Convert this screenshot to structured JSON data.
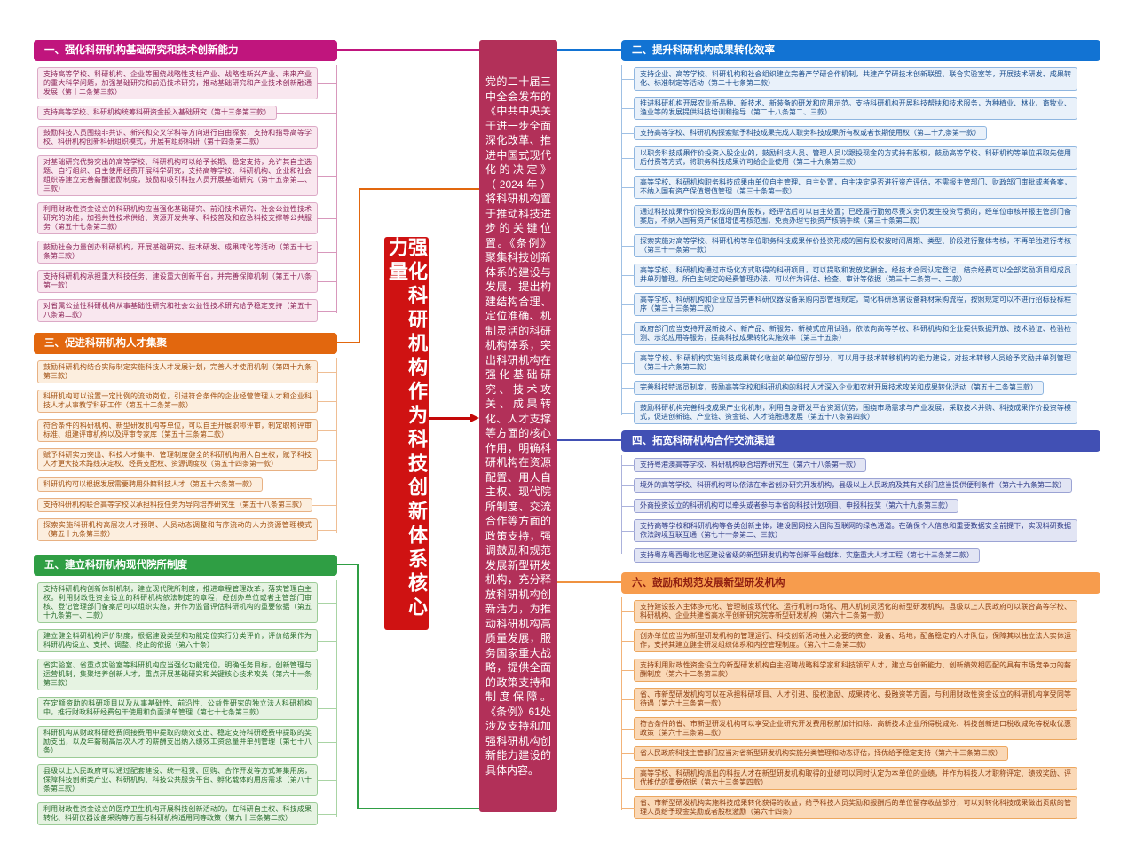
{
  "root": {
    "title": "强化科研机构作为科技创新体系核心力量",
    "title_bg": "#CF1212",
    "summary": "党的二十届三中全会发布的《中共中央关于进一步全面深化改革、推进中国式现代化的决定》（2024年）将科研机构置于推动科技进步的关键位置。《条例》聚集科技创新体系的建设与发展，提出构建结构合理、定位准确、机制灵活的科研机构体系，突出科研机构在强化基础研究、技术攻关、成果转化、人才支撑等方面的核心作用，明确科研机构在资源配置、用人自主权、现代院所制度、交流合作等方面的政策支持，强调鼓励和规范发展新型研发机构，充分释放科研机构创新活力，为推动科研机构高质量发展，服务国家重大战略，提供全面的政策支持和制度保障。《条例》61处涉及支持和加强科研机构创新能力建设的具体内容。",
    "summary_bg": "#B23059",
    "arrow_color": "#C40808"
  },
  "branches": [
    {
      "id": "b1",
      "side": "left",
      "label": "一、强化科研机构基础研究和技术创新能力",
      "colors": {
        "header_bg": "#C0157D",
        "header_text": "#FFFFFF",
        "item_bg": "#F9E7EF",
        "item_border": "#DCA9C6",
        "item_text": "#8C2457",
        "line": "#D898BC",
        "connector": "#C0157D"
      },
      "items": [
        "支持高等学校、科研机构、企业等围绕战略性支柱产业、战略性新兴产业、未来产业的重大科学问题，加强基础研究和前沿技术研究，推动基础研究和产业技术创新融通发展（第十二条第三款）",
        "支持高等学校、科研机构统筹科研资金投入基础研究（第十三条第三款）",
        "鼓励科技人员围绕非共识、新兴和交叉学科等方向进行自由探索，支持和指导高等学校、科研机构创新科研组织模式，开展有组织科研（第十四条第二款）",
        "对基础研究优势突出的高等学校、科研机构可以给予长期、稳定支持，允许其自主选题、自行组织、自主使用经费开展科学研究，支持高等学校、科研机构、企业和社会组织等建立完善薪酬激励制度，鼓励和吸引科技人员开展基础研究（第十五条第二、三款）",
        "利用财政性资金设立的科研机构应当强化基础研究、前沿技术研究、社会公益性技术研究的功能，加强共性技术供给、资源开发共享、科技普及和应急科技支撑等公共服务（第五十七条第二款）",
        "鼓励社会力量创办科研机构，开展基础研究、技术研发、成果转化等活动（第五十七条第三款）",
        "支持科研机构承担重大科技任务、建设重大创新平台，并完善保障机制（第五十八条第一款）",
        "对省属公益性科研机构从事基础性研究和社会公益性技术研究给予稳定支持（第五十八条第二款）"
      ]
    },
    {
      "id": "b2",
      "side": "right",
      "label": "二、提升科研机构成果转化效率",
      "colors": {
        "header_bg": "#1273D3",
        "header_text": "#FFFFFF",
        "item_bg": "#E9F1FA",
        "item_border": "#8FB6E0",
        "item_text": "#1B4E8C",
        "line": "#9FC0E4",
        "connector": "#1273D3"
      },
      "items": [
        "支持企业、高等学校、科研机构和社会组织建立完善产学研合作机制，共建产学研技术创新联盟、联合实验室等，开展技术研发、成果转化、标准制定等活动（第二十七条第二款）",
        "推进科研机构开展农业新品种、新技术、新装备的研发和应用示范。支持科研机构开展科技帮扶和技术服务，为种植业、林业、畜牧业、渔业等的发展提供科技培训和指导（第二十八条第二、三款）",
        "支持高等学校、科研机构探索赋予科技成果完成人职务科技成果所有权或者长期使用权（第二十九条第一款）",
        "以职务科技成果作价投资入股企业的，鼓励科技人员、管理人员以跟投现金的方式持有股权，鼓励高等学校、科研机构等单位采取先使用后付费等方式，将职务科技成果许可给企业使用（第二十九条第三款）",
        "高等学校、科研机构职务科技成果由单位自主管理、自主处置，自主决定是否进行资产评估，不需报主管部门、财政部门审批或者备案，不纳入国有资产保值增值管理（第三十条第一款）",
        "通过科技成果作价投资形成的国有股权，经评估后可以自主处置；已经履行勤勉尽责义务仍发生投资亏损的，经单位审核并报主管部门备案后，不纳入国有资产保值增值考核范围，免责办理亏损资产核销手续（第三十条第二款）",
        "探索实施对高等学校、科研机构等单位职务科技成果作价投资形成的国有股权按时间周期、类型、阶段进行整体考核，不再单独进行考核（第三十一条第一款）",
        "高等学校、科研机构通过市场化方式取得的科研项目，可以提取和发放奖酬金。经技术合同认定登记，结余经费可以全部奖励项目组成员并单列管理。所自主制定的经费管理办法，可以作为评估、检查、审计等依据（第三十二条第一、二款）",
        "高等学校、科研机构和企业应当完善科研仪器设备采购内部管理规定，简化科研急需设备耗材采购流程，按照规定可以不进行招标投标程序（第三十三条第二款）",
        "政府部门应当支持开展新技术、新产品、新服务、新模式应用试验，依法向高等学校、科研机构和企业提供数据开放、技术验证、检验检测、示范应用等服务，提高科技成果转化实施效率（第三十五条）",
        "高等学校、科研机构实施科技成果转化收益的单位留存部分，可以用于技术转移机构的能力建设，对技术转移人员给予奖励并单列管理（第三十六条第二款）",
        "完善科技特派员制度，鼓励高等学校和科研机构的科技人才深入企业和农村开展技术攻关和成果转化活动（第五十二条第三款）",
        "鼓励科研机构完善科技成果产业化机制，利用自身研发平台资源优势，围绕市场需求与产业发展，采取技术并购、科技成果作价投资等模式，促进创新链、产业链、资金链、人才链融通发展（第五十八条第四款）"
      ]
    },
    {
      "id": "b3",
      "side": "left",
      "label": "三、促进科研机构人才集聚",
      "colors": {
        "header_bg": "#E2670E",
        "header_text": "#FFFFFF",
        "item_bg": "#FCEEDE",
        "item_border": "#E8B183",
        "item_text": "#A04F10",
        "line": "#EFBE94",
        "connector": "#E2670E"
      },
      "items": [
        "鼓励科研机构结合实际制定实施科技人才发展计划，完善人才使用机制（第四十九条第三款）",
        "科研机构可以设置一定比例的流动岗位，引进符合条件的企业经营管理人才和企业科技人才从事教学科研工作（第五十二条第一款）",
        "符合条件的科研机构、新型研发机构等单位，可以自主开展职称评审，制定职称评审标准、组建评审机构以及评审专家库（第五十三条第二款）",
        "赋予科研实力突出、科技人才集中、管理制度健全的科研机构用人自主权，赋予科技人才更大技术路线决定权、经费支配权、资源调度权（第五十四条第一款）",
        "科研机构可以根据发展需要聘用外籍科技人才（第五十六条第一款）",
        "支持科研机构联合高等学校以承担科技任务为导向培养研究生（第五十八条第三款）",
        "探索实施科研机构高层次人才预聘、人员动态调整和有序流动的人力资源管理模式（第五十九条第三款）"
      ]
    },
    {
      "id": "b4",
      "side": "right",
      "label": "四、拓宽科研机构合作交流渠道",
      "colors": {
        "header_bg": "#4150B4",
        "header_text": "#FFFFFF",
        "item_bg": "#E2E5F4",
        "item_border": "#9BA3D4",
        "item_text": "#2E3A86",
        "line": "#ABB2DC",
        "connector": "#4150B4"
      },
      "items": [
        "支持粤港澳高等学校、科研机构联合培养研究生（第六十八条第一款）",
        "境外的高等学校、科研机构可以依法在本省创办研究开发机构，县级以上人民政府及其有关部门应当提供便利条件（第六十九条第二款）",
        "外商投资设立的科研机构可以牵头或者参与本省的科技计划项目、申报科技奖（第六十九条第三款）",
        "支持高等学校和科研机构等各类创新主体，建设固网接入国际互联网的绿色通道。在确保个人信息和重要数据安全前提下，实现科研数据依法跨境互联互通（第七十一条第二、三款）",
        "支持粤东粤西粤北地区建设省级的新型研发机构等创新平台载体，实施重大人才工程（第七十三条第二款）"
      ]
    },
    {
      "id": "b5",
      "side": "left",
      "label": "五、建立科研机构现代院所制度",
      "colors": {
        "header_bg": "#2F9E44",
        "header_text": "#FFFFFF",
        "item_bg": "#E6F3E2",
        "item_border": "#9BCB96",
        "item_text": "#2B6E2F",
        "line": "#A9D4A4",
        "connector": "#2F9E44"
      },
      "items": [
        "支持科研机构创新体制机制，建立现代院所制度，推进章程管理改革，落实管理自主权。利用财政性资金设立的科研机构依法制定的章程，经创办单位或者主管部门审核、登记管理部门备案后可以组织实施，并作为监督评估科研机构的重要依据（第五十九条第一、二款）",
        "建立健全科研机构评价制度，根据建设类型和功能定位实行分类评价，评价结果作为科研机构设立、支持、调整、终止的依据（第六十条）",
        "省实验室、省重点实验室等科研机构应当强化功能定位，明确任务目标，创新管理与运营机制，集聚培养创新人才，重点开展基础研究和关键核心技术攻关（第六十一条第三款）",
        "在定额资助的科研项目以及从事基础性、前沿性、公益性研究的独立法人科研机构中，推行财政科研经费包干使用和负面清单管理（第七十七条第三款）",
        "科研机构从财政科研经费间接费用中提取的绩效支出、稳定支持科研经费中提取的奖励支出，以及年薪制高层次人才的薪酬支出纳入绩效工资总量并单列管理（第七十八条）",
        "县级以上人民政府可以通过配套建设、统一租赁、回购、合作开发等方式筹集用房，保障科技创新类产业、科研机构、科技公共服务平台、孵化载体的用房需求（第八十条第三款）",
        "利用财政性资金设立的医疗卫生机构开展科技创新活动的，在科研自主权、科技成果转化、科研仪器设备采购等方面与科研机构适用同等政策（第九十三条第二款）"
      ]
    },
    {
      "id": "b6",
      "side": "right",
      "label": "六、鼓励和规范发展新型研发机构",
      "colors": {
        "header_bg": "#F79C4D",
        "header_text": "#8E1D10",
        "item_bg": "#FAD8B6",
        "item_border": "#ECA75F",
        "item_text": "#8C3E12",
        "line": "#F2B379",
        "connector": "#EF9240"
      },
      "items": [
        "支持建设投入主体多元化、管理制度现代化、运行机制市场化、用人机制灵活化的新型研发机构。县级以上人民政府可以联合高等学校、科研机构、企业共建省高水平创新研究院等新型研发机构（第六十二条第一款）",
        "创办单位应当为新型研发机构的管理运行、科技创新活动投入必要的资金、设备、场地，配备稳定的人才队伍，保障其以独立法人实体运作，支持其建立健全研发组织体系和内控管理制度。（第六十二条第二款）",
        "支持利用财政性资金设立的新型研发机构自主招聘战略科学家和科技领军人才，建立与创新能力、创新绩效相匹配的具有市场竞争力的薪酬制度（第六十二条第三款）",
        "省、市新型研发机构可以在承担科研项目、人才引进、股权激励、成果转化、投融资等方面，与利用财政性资金设立的科研机构享受同等待遇（第六十三条第一款）",
        "符合条件的省、市新型研发机构可以享受企业研究开发费用税前加计扣除、高新技术企业所得税减免、科技创新进口税收减免等税收优惠政策（第六十三条第二款）",
        "省人民政府科技主管部门应当对省新型研发机构实施分类管理和动态评估，择优给予稳定支持（第六十三条第三款）",
        "高等学校、科研机构派出的科技人才在新型研发机构取得的业绩可以同时认定为本单位的业绩，并作为科技人才职称评定、绩效奖励、评优推优的重要依据（第六十三条第四款）",
        "省、市新型研发机构实施科技成果转化获得的收益，给予科技人员奖励和报酬后的单位留存收益部分，可以对转化科技成果做出贡献的管理人员给予现金奖励或者股权激励（第六十四条）"
      ]
    }
  ]
}
